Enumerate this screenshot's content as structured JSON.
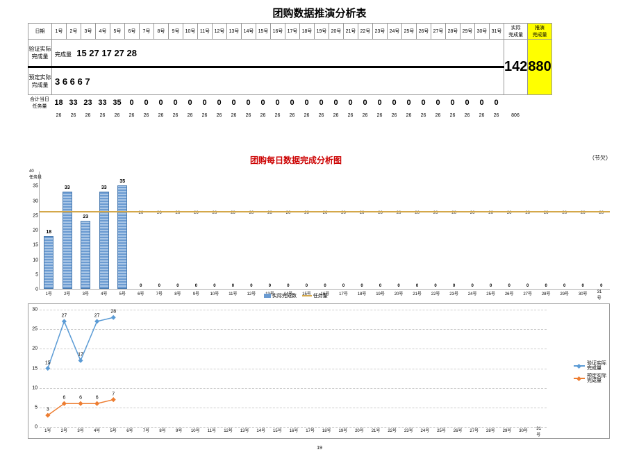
{
  "title": "团购数据推演分析表",
  "headers": {
    "date": "日期",
    "actual_sum": "实际\n完成量",
    "proj_sum": "推演\n完成量"
  },
  "days": [
    "1号",
    "2号",
    "3号",
    "4号",
    "5号",
    "6号",
    "7号",
    "8号",
    "9号",
    "10号",
    "11号",
    "12号",
    "13号",
    "14号",
    "15号",
    "16号",
    "17号",
    "18号",
    "19号",
    "20号",
    "21号",
    "22号",
    "23号",
    "24号",
    "25号",
    "26号",
    "27号",
    "28号",
    "29号",
    "30号",
    "31号"
  ],
  "row1_label": "验证实际\n完成量",
  "row1_sublabel": "完成量",
  "row1_vals": [
    15,
    27,
    17,
    27,
    28
  ],
  "row2_label": "预定实际\n完成量",
  "row2_vals": [
    3,
    6,
    6,
    6,
    7
  ],
  "sum_actual": 142,
  "sum_proj": 880,
  "totals_label": "合计当日\n任务量",
  "totals": [
    18,
    33,
    23,
    33,
    35,
    0,
    0,
    0,
    0,
    0,
    0,
    0,
    0,
    0,
    0,
    0,
    0,
    0,
    0,
    0,
    0,
    0,
    0,
    0,
    0,
    0,
    0,
    0,
    0,
    0,
    0
  ],
  "subtotal_806": 806,
  "targets": [
    26,
    26,
    26,
    26,
    26,
    26,
    26,
    26,
    26,
    26,
    26,
    26,
    26,
    26,
    26,
    26,
    26,
    26,
    26,
    26,
    26,
    26,
    26,
    26,
    26,
    26,
    26,
    26,
    26,
    26,
    26
  ],
  "chart_title": "团购每日数据完成分析图",
  "savings_label": "（节欠）",
  "legend": {
    "bars": "实际完成数",
    "target": "任务量",
    "line1": "验证实际\n完成量",
    "line2": "预定实际\n完成量"
  },
  "bar_chart": {
    "ymax": 40,
    "ystep": 5,
    "bars": [
      18,
      33,
      23,
      33,
      35,
      0,
      0,
      0,
      0,
      0,
      0,
      0,
      0,
      0,
      0,
      0,
      0,
      0,
      0,
      0,
      0,
      0,
      0,
      0,
      0,
      0,
      0,
      0,
      0,
      0,
      0
    ],
    "bar_color": "#6b9bd1",
    "target_val": 26,
    "target_color": "#d4a84a"
  },
  "line_chart": {
    "ymax": 30,
    "ystep": 5,
    "series1": {
      "name": "验证实际完成量",
      "color": "#5b9bd5",
      "vals": [
        15,
        27,
        17,
        27,
        28
      ]
    },
    "series2": {
      "name": "预定实际完成量",
      "color": "#ed7d31",
      "vals": [
        3,
        6,
        6,
        6,
        7
      ]
    }
  },
  "page_no": "19"
}
